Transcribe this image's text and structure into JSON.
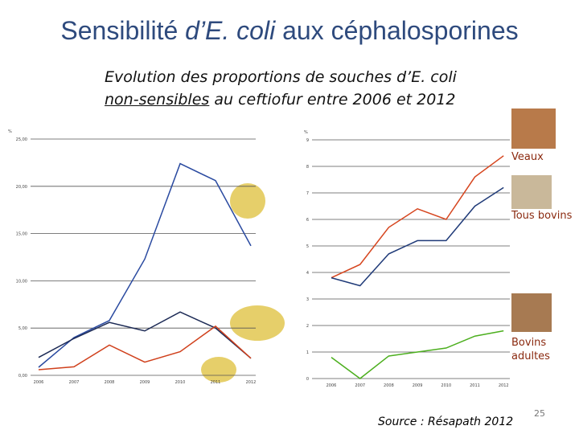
{
  "title": [
    "Sensibilité ",
    "d’E. coli",
    " aux céphalosporines"
  ],
  "subtitle": [
    "Evolution des proportions de souches d’E. coli",
    "non-sensibles",
    " au ceftiofur entre 2006 et 2012"
  ],
  "source": "Source : Résapath 2012",
  "page_number": "25",
  "chart_data": [
    {
      "type": "line",
      "y_label": "%",
      "categories": [
        "2006",
        "2007",
        "2008",
        "2009",
        "2010",
        "2011",
        "2012"
      ],
      "ylim": [
        0,
        25
      ],
      "yticks": [
        {
          "value": 0,
          "label": "0,00"
        },
        {
          "value": 5,
          "label": "5,00"
        },
        {
          "value": 10,
          "label": "10,00"
        },
        {
          "value": 15,
          "label": "15,00"
        },
        {
          "value": 20,
          "label": "20,00"
        },
        {
          "value": 25,
          "label": "25,00"
        }
      ],
      "grid": true,
      "series": [
        {
          "color": "#2a4aa0",
          "values": [
            0.85,
            4.0,
            5.8,
            12.3,
            22.4,
            20.6,
            13.7
          ]
        },
        {
          "color": "#1c2a55",
          "values": [
            1.9,
            3.9,
            5.6,
            4.7,
            6.7,
            5.0,
            1.8
          ]
        },
        {
          "color": "#d0401c",
          "values": [
            0.6,
            0.9,
            3.2,
            1.4,
            2.5,
            5.2,
            1.8
          ]
        }
      ]
    },
    {
      "type": "line",
      "y_label": "%",
      "categories": [
        "2006",
        "2007",
        "2008",
        "2009",
        "2010",
        "2011",
        "2012"
      ],
      "ylim": [
        0,
        9
      ],
      "yticks": [
        0,
        1,
        2,
        3,
        4,
        5,
        6,
        7,
        8,
        9
      ],
      "grid": true,
      "series": [
        {
          "name": "Veaux",
          "color": "#d6451e",
          "values": [
            3.8,
            4.3,
            5.7,
            6.4,
            6.0,
            7.6,
            8.4
          ]
        },
        {
          "name": "Tous bovins",
          "color": "#1f3a78",
          "values": [
            3.8,
            3.5,
            4.7,
            5.2,
            5.2,
            6.5,
            7.2
          ]
        },
        {
          "name": "Bovins adultes",
          "color": "#4caf1e",
          "values": [
            0.8,
            0.0,
            0.85,
            1.0,
            1.15,
            1.6,
            1.8
          ]
        }
      ]
    }
  ]
}
